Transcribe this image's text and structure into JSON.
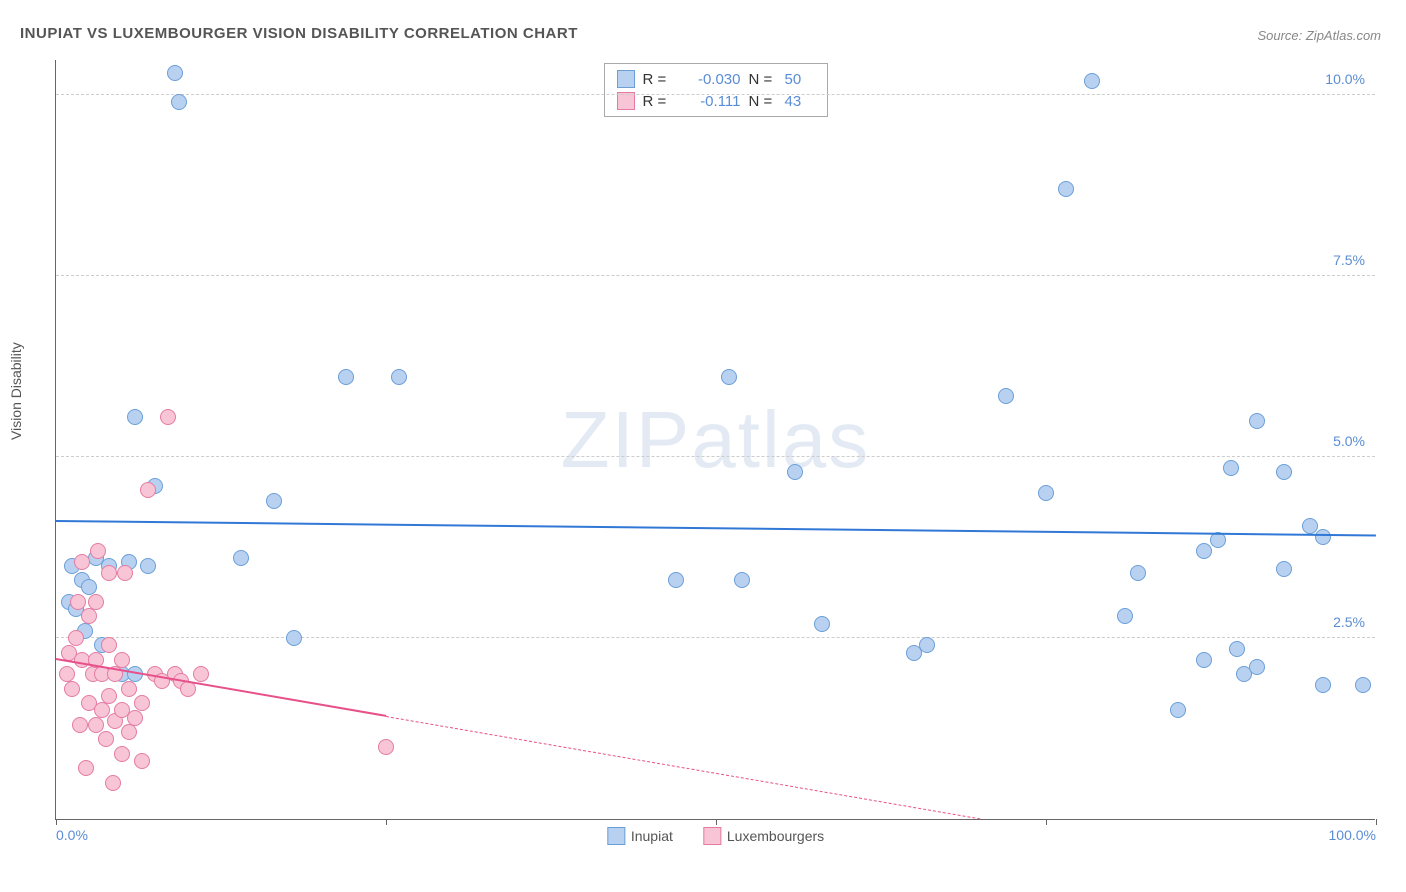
{
  "title": "INUPIAT VS LUXEMBOURGER VISION DISABILITY CORRELATION CHART",
  "source": "Source: ZipAtlas.com",
  "y_axis_label": "Vision Disability",
  "watermark_bold": "ZIP",
  "watermark_light": "atlas",
  "chart": {
    "type": "scatter",
    "background_color": "#ffffff",
    "grid_color": "#cccccc",
    "axis_color": "#666666",
    "xlim": [
      0,
      100
    ],
    "ylim": [
      0,
      10.5
    ],
    "y_gridlines": [
      2.5,
      5.0,
      7.5,
      10.0
    ],
    "y_tick_labels": [
      "2.5%",
      "5.0%",
      "7.5%",
      "10.0%"
    ],
    "x_tick_positions": [
      0,
      25,
      50,
      75,
      100
    ],
    "x_tick_labels": {
      "0": "0.0%",
      "100": "100.0%"
    },
    "tick_color": "#5b8dd6",
    "tick_fontsize": 14,
    "title_fontsize": 15,
    "label_fontsize": 14,
    "marker_size": 16,
    "series": [
      {
        "name": "Inupiat",
        "color_fill": "#b9d1f0",
        "color_stroke": "#6a9fd8",
        "R": "-0.030",
        "N": "50",
        "trend": {
          "color": "#3178d6",
          "x1": 0,
          "y1": 4.1,
          "x2": 100,
          "y2": 3.9,
          "solid_to_x": 100
        },
        "points": [
          {
            "x": 1.0,
            "y": 3.0
          },
          {
            "x": 1.2,
            "y": 3.5
          },
          {
            "x": 1.5,
            "y": 2.9
          },
          {
            "x": 2.0,
            "y": 3.3
          },
          {
            "x": 2.2,
            "y": 2.6
          },
          {
            "x": 2.5,
            "y": 3.2
          },
          {
            "x": 3.0,
            "y": 3.6
          },
          {
            "x": 3.5,
            "y": 2.4
          },
          {
            "x": 4.0,
            "y": 3.5
          },
          {
            "x": 5.0,
            "y": 2.0
          },
          {
            "x": 5.5,
            "y": 3.55
          },
          {
            "x": 6.0,
            "y": 2.0
          },
          {
            "x": 6.0,
            "y": 5.55
          },
          {
            "x": 7.0,
            "y": 3.5
          },
          {
            "x": 7.5,
            "y": 4.6
          },
          {
            "x": 9.0,
            "y": 10.3
          },
          {
            "x": 9.3,
            "y": 9.9
          },
          {
            "x": 14.0,
            "y": 3.6
          },
          {
            "x": 16.5,
            "y": 4.4
          },
          {
            "x": 18.0,
            "y": 2.5
          },
          {
            "x": 22.0,
            "y": 6.1
          },
          {
            "x": 26.0,
            "y": 6.1
          },
          {
            "x": 47.0,
            "y": 3.3
          },
          {
            "x": 51.0,
            "y": 6.1
          },
          {
            "x": 52.0,
            "y": 3.3
          },
          {
            "x": 56.0,
            "y": 4.8
          },
          {
            "x": 58.0,
            "y": 2.7
          },
          {
            "x": 65.0,
            "y": 2.3
          },
          {
            "x": 66.0,
            "y": 2.4
          },
          {
            "x": 72.0,
            "y": 5.85
          },
          {
            "x": 75.0,
            "y": 4.5
          },
          {
            "x": 76.5,
            "y": 8.7
          },
          {
            "x": 78.5,
            "y": 10.2
          },
          {
            "x": 81.0,
            "y": 2.8
          },
          {
            "x": 82.0,
            "y": 3.4
          },
          {
            "x": 85.0,
            "y": 1.5
          },
          {
            "x": 87.0,
            "y": 2.2
          },
          {
            "x": 87.0,
            "y": 3.7
          },
          {
            "x": 88.0,
            "y": 3.85
          },
          {
            "x": 89.0,
            "y": 4.85
          },
          {
            "x": 89.5,
            "y": 2.35
          },
          {
            "x": 90.0,
            "y": 2.0
          },
          {
            "x": 91.0,
            "y": 2.1
          },
          {
            "x": 91.0,
            "y": 5.5
          },
          {
            "x": 93.0,
            "y": 3.45
          },
          {
            "x": 93.0,
            "y": 4.8
          },
          {
            "x": 95.0,
            "y": 4.05
          },
          {
            "x": 96.0,
            "y": 1.85
          },
          {
            "x": 96.0,
            "y": 3.9
          },
          {
            "x": 99.0,
            "y": 1.85
          }
        ]
      },
      {
        "name": "Luxembourgers",
        "color_fill": "#f7c5d5",
        "color_stroke": "#e57ba3",
        "R": "-0.111",
        "N": "43",
        "trend": {
          "color": "#e8508a",
          "x1": 0,
          "y1": 2.2,
          "x2": 70,
          "y2": 0.0,
          "solid_to_x": 25
        },
        "points": [
          {
            "x": 0.8,
            "y": 2.0
          },
          {
            "x": 1.0,
            "y": 2.3
          },
          {
            "x": 1.2,
            "y": 1.8
          },
          {
            "x": 1.5,
            "y": 2.5
          },
          {
            "x": 1.7,
            "y": 3.0
          },
          {
            "x": 1.8,
            "y": 1.3
          },
          {
            "x": 2.0,
            "y": 2.2
          },
          {
            "x": 2.0,
            "y": 3.55
          },
          {
            "x": 2.3,
            "y": 0.7
          },
          {
            "x": 2.5,
            "y": 1.6
          },
          {
            "x": 2.5,
            "y": 2.8
          },
          {
            "x": 2.8,
            "y": 2.0
          },
          {
            "x": 3.0,
            "y": 1.3
          },
          {
            "x": 3.0,
            "y": 2.2
          },
          {
            "x": 3.0,
            "y": 3.0
          },
          {
            "x": 3.2,
            "y": 3.7
          },
          {
            "x": 3.5,
            "y": 1.5
          },
          {
            "x": 3.5,
            "y": 2.0
          },
          {
            "x": 3.8,
            "y": 1.1
          },
          {
            "x": 4.0,
            "y": 1.7
          },
          {
            "x": 4.0,
            "y": 2.4
          },
          {
            "x": 4.0,
            "y": 3.4
          },
          {
            "x": 4.3,
            "y": 0.5
          },
          {
            "x": 4.5,
            "y": 1.35
          },
          {
            "x": 4.5,
            "y": 2.0
          },
          {
            "x": 5.0,
            "y": 0.9
          },
          {
            "x": 5.0,
            "y": 1.5
          },
          {
            "x": 5.0,
            "y": 2.2
          },
          {
            "x": 5.2,
            "y": 3.4
          },
          {
            "x": 5.5,
            "y": 1.2
          },
          {
            "x": 5.5,
            "y": 1.8
          },
          {
            "x": 6.0,
            "y": 1.4
          },
          {
            "x": 6.5,
            "y": 0.8
          },
          {
            "x": 6.5,
            "y": 1.6
          },
          {
            "x": 7.0,
            "y": 4.55
          },
          {
            "x": 7.5,
            "y": 2.0
          },
          {
            "x": 8.0,
            "y": 1.9
          },
          {
            "x": 8.5,
            "y": 5.55
          },
          {
            "x": 9.0,
            "y": 2.0
          },
          {
            "x": 9.5,
            "y": 1.9
          },
          {
            "x": 10.0,
            "y": 1.8
          },
          {
            "x": 11.0,
            "y": 2.0
          },
          {
            "x": 25.0,
            "y": 1.0
          }
        ]
      }
    ]
  },
  "legend_top": {
    "r_label": "R =",
    "n_label": "N ="
  },
  "legend_bottom": {
    "items": [
      "Inupiat",
      "Luxembourgers"
    ]
  }
}
